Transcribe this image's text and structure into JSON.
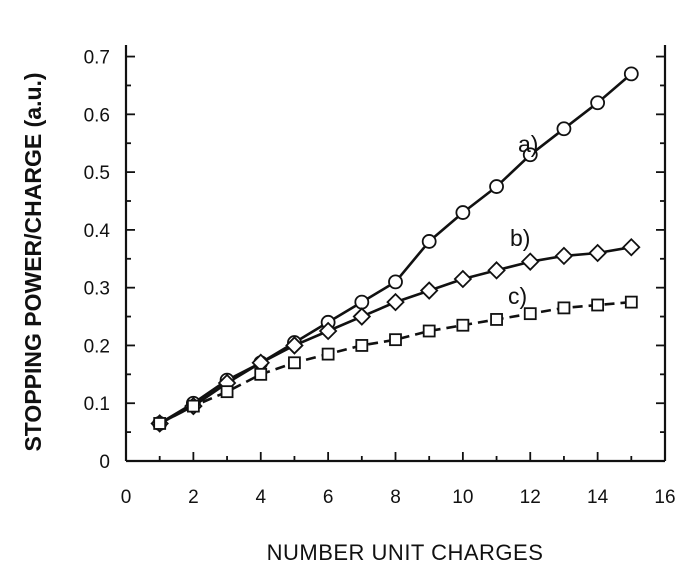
{
  "chart_data": {
    "type": "line",
    "xlabel": "NUMBER UNIT CHARGES",
    "ylabel": "STOPPING POWER/CHARGE (a.u.)",
    "xlim": [
      0,
      16
    ],
    "ylim": [
      0,
      0.72
    ],
    "xticks": [
      "0",
      "2",
      "4",
      "6",
      "8",
      "10",
      "12",
      "14",
      "16"
    ],
    "yticks": [
      "0",
      "0.1",
      "0.2",
      "0.3",
      "0.4",
      "0.5",
      "0.6",
      "0.7"
    ],
    "grid": false,
    "series": [
      {
        "name": "a)",
        "marker": "circle",
        "line": "solid",
        "x": [
          1,
          2,
          3,
          4,
          5,
          6,
          7,
          8,
          9,
          10,
          11,
          12,
          13,
          14,
          15
        ],
        "y": [
          0.065,
          0.1,
          0.14,
          0.17,
          0.205,
          0.24,
          0.275,
          0.31,
          0.38,
          0.43,
          0.475,
          0.53,
          0.575,
          0.62,
          0.67
        ]
      },
      {
        "name": "b)",
        "marker": "diamond",
        "line": "solid",
        "x": [
          1,
          2,
          3,
          4,
          5,
          6,
          7,
          8,
          9,
          10,
          11,
          12,
          13,
          14,
          15
        ],
        "y": [
          0.065,
          0.095,
          0.135,
          0.17,
          0.2,
          0.225,
          0.25,
          0.275,
          0.295,
          0.315,
          0.33,
          0.345,
          0.355,
          0.36,
          0.37
        ]
      },
      {
        "name": "c)",
        "marker": "square",
        "line": "dashed",
        "x": [
          1,
          2,
          3,
          4,
          5,
          6,
          7,
          8,
          9,
          10,
          11,
          12,
          13,
          14,
          15
        ],
        "y": [
          0.065,
          0.095,
          0.12,
          0.15,
          0.17,
          0.185,
          0.2,
          0.21,
          0.225,
          0.235,
          0.245,
          0.255,
          0.265,
          0.27,
          0.275
        ]
      }
    ],
    "labels": {
      "a": "a)",
      "b": "b)",
      "c": "c)"
    }
  }
}
